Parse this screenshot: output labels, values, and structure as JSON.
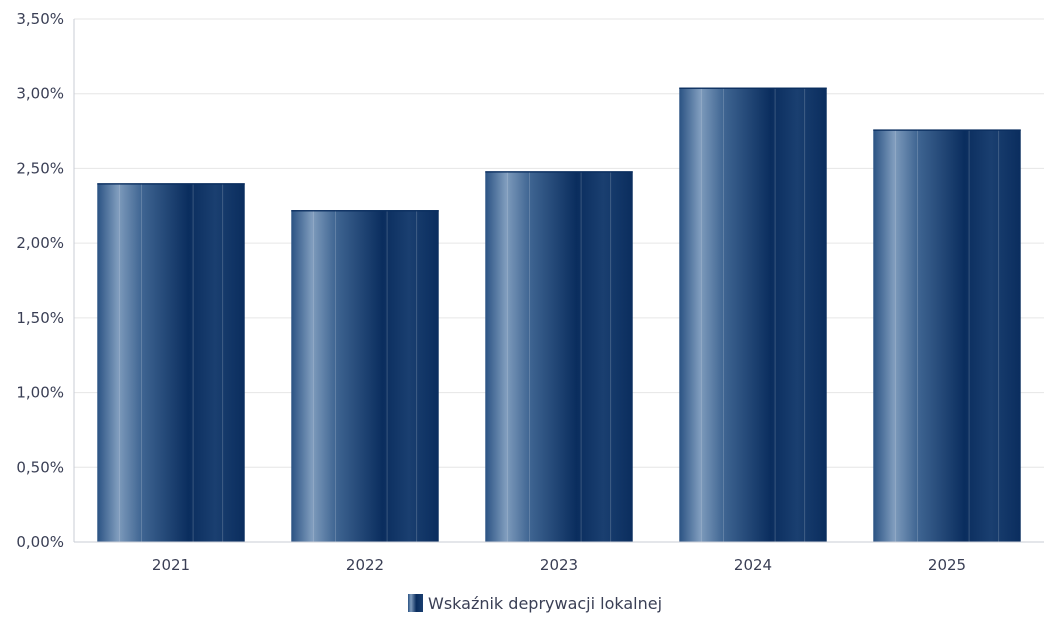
{
  "chart_data": {
    "type": "bar",
    "categories": [
      "2021",
      "2022",
      "2023",
      "2024",
      "2025"
    ],
    "series": [
      {
        "name": "Wskaźnik deprywacji lokalnej",
        "values": [
          2.4,
          2.22,
          2.48,
          3.04,
          2.76
        ]
      }
    ],
    "yticks": [
      "0,00%",
      "0,50%",
      "1,00%",
      "1,50%",
      "2,00%",
      "2,50%",
      "3,00%",
      "3,50%"
    ],
    "ylim": [
      0,
      3.5
    ],
    "grid": true,
    "legend_position": "bottom-center",
    "colors": {
      "bar_dark": "#0a2d5e",
      "bar_mid": "#2a5283",
      "bar_light": "#7f9cbd",
      "gridline": "#e6e6e6",
      "axis": "#c8ccd6",
      "text": "#3a3f55"
    }
  }
}
